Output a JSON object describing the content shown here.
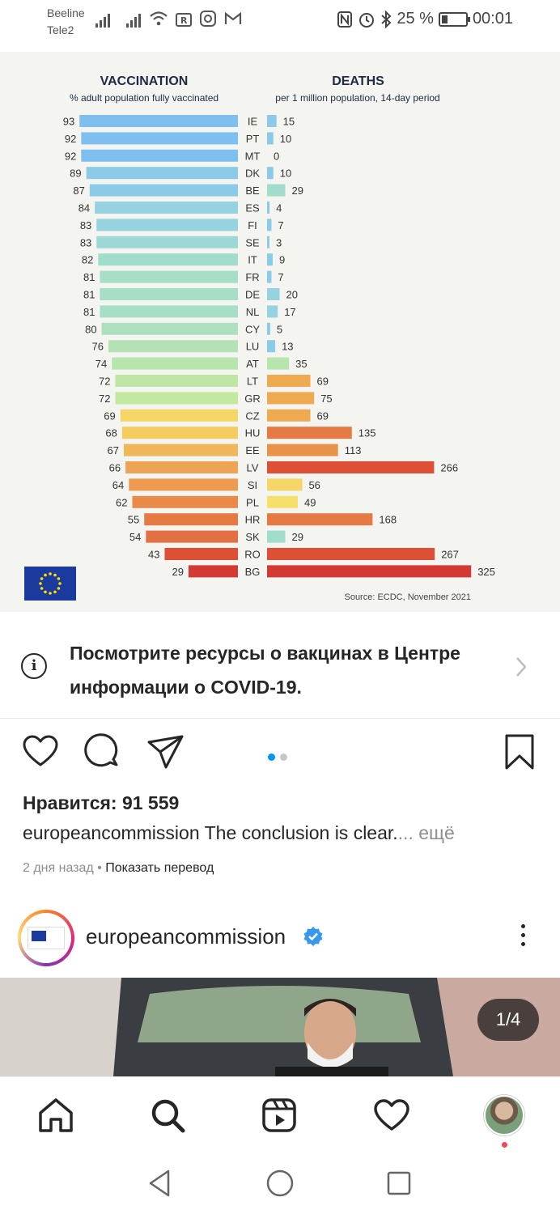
{
  "status_bar": {
    "carrier1": "Beeline",
    "carrier2": "Tele2",
    "battery": "25 %",
    "battery_level": 0.25,
    "time": "00:01"
  },
  "infographic": {
    "left_title": "VACCINATION",
    "left_subtitle": "% adult population fully vaccinated",
    "right_title": "DEATHS",
    "right_subtitle": "per 1 million population, 14-day period",
    "source": "Source: ECDC, November 2021"
  },
  "chart_data": {
    "type": "bar",
    "categories": [
      "IE",
      "PT",
      "MT",
      "DK",
      "BE",
      "ES",
      "FI",
      "SE",
      "IT",
      "FR",
      "DE",
      "NL",
      "CY",
      "LU",
      "AT",
      "LT",
      "GR",
      "CZ",
      "HU",
      "EE",
      "LV",
      "SI",
      "PL",
      "HR",
      "SK",
      "RO",
      "BG"
    ],
    "series": [
      {
        "name": "VACCINATION",
        "values": [
          93,
          92,
          92,
          89,
          87,
          84,
          83,
          83,
          82,
          81,
          81,
          81,
          80,
          76,
          74,
          72,
          72,
          69,
          68,
          67,
          66,
          64,
          62,
          55,
          54,
          43,
          29
        ]
      },
      {
        "name": "DEATHS",
        "values": [
          15,
          10,
          0,
          10,
          29,
          4,
          7,
          3,
          9,
          7,
          20,
          17,
          5,
          13,
          35,
          69,
          75,
          69,
          135,
          113,
          266,
          56,
          49,
          168,
          29,
          267,
          325
        ]
      }
    ],
    "vacc_colors": [
      "#7fbff0",
      "#7fbff0",
      "#7fbff0",
      "#8ccbe8",
      "#8ccbe8",
      "#96d2e0",
      "#96d2e0",
      "#9dd8d6",
      "#a2dccc",
      "#a6dec6",
      "#a6dec6",
      "#a6dec6",
      "#aee0bf",
      "#b4e2b6",
      "#b8e4ae",
      "#bfe6a4",
      "#c3e8a0",
      "#f4d565",
      "#f4cc60",
      "#f0b65a",
      "#eea455",
      "#ee9a50",
      "#ea8a4a",
      "#e57a45",
      "#e27042",
      "#dd5036",
      "#d43a34"
    ],
    "death_colors": [
      "#8ccbe8",
      "#8ccbe8",
      "#8ccbe8",
      "#8ccbe8",
      "#a2dccc",
      "#8ccbe8",
      "#8ccbe8",
      "#8ccbe8",
      "#8ccbe8",
      "#8ccbe8",
      "#96d2e0",
      "#96d2e0",
      "#8ccbe8",
      "#8ccbe8",
      "#b8e4ae",
      "#eeaa50",
      "#eeaa50",
      "#eeaa50",
      "#e57a45",
      "#e8924c",
      "#dd5036",
      "#f4d565",
      "#f4e06a",
      "#e57a45",
      "#a2dccc",
      "#dd5036",
      "#d43a34"
    ]
  },
  "covid_card": {
    "text": "Посмотрите ресурсы о вакцинах в Центре информации о COVID-19."
  },
  "post": {
    "likes": "Нравится: 91 559",
    "caption_user": "europeancommission",
    "caption_text": " The conclusion is clear.",
    "caption_more": "... ещё",
    "time_ago": "2 дня назад",
    "separator": " • ",
    "translate": "Показать перевод"
  },
  "next_post": {
    "username": "europeancommission",
    "counter": "1/4"
  }
}
